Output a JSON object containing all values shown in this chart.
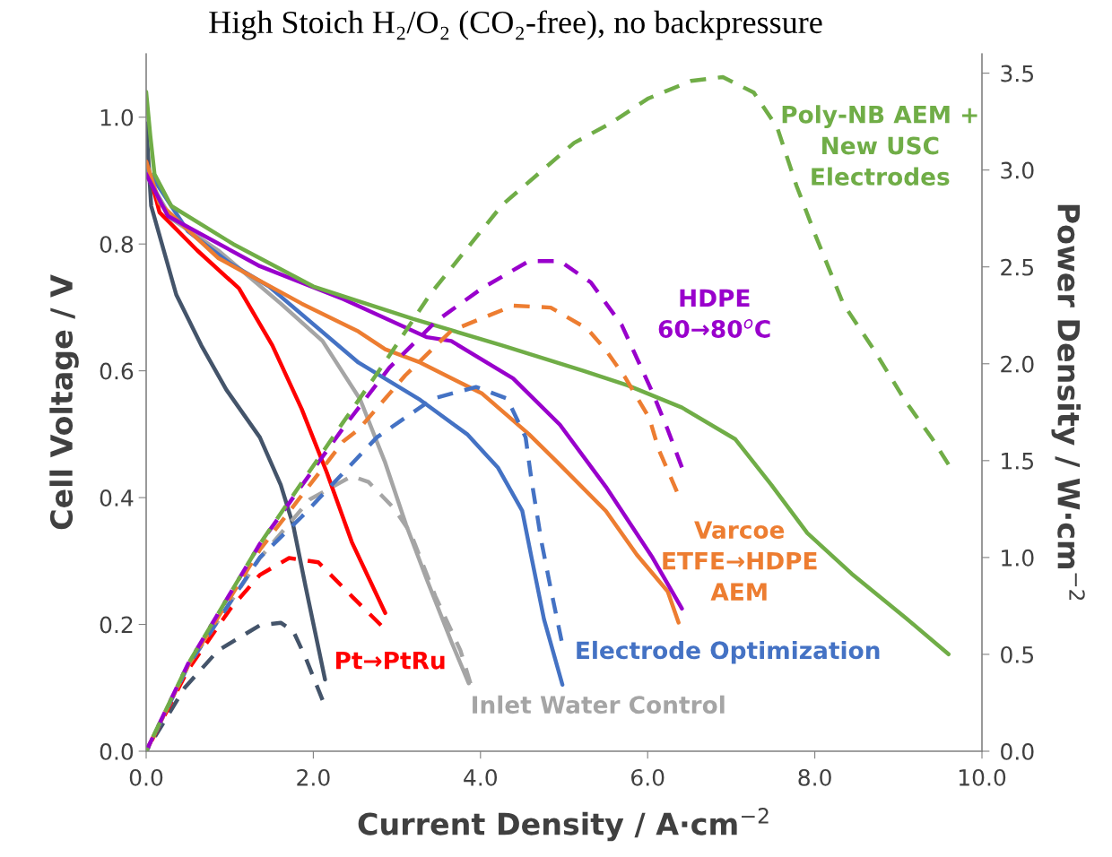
{
  "chart_data": {
    "type": "line",
    "title": "High Stoich H₂/O₂ (CO₂-free), no backpressure",
    "xlabel": "Current Density / A·cm$^{−2}$",
    "ylabel": "Cell Voltage / V",
    "y2label": "Power Density / W·cm$^{−2}$",
    "xlim": [
      0,
      10
    ],
    "xticks": [
      {
        "value": 0,
        "label": "0.0"
      },
      {
        "value": 2,
        "label": "2.0"
      },
      {
        "value": 4,
        "label": "4.0"
      },
      {
        "value": 6,
        "label": "6.0"
      },
      {
        "value": 8,
        "label": "8.0"
      },
      {
        "value": 10,
        "label": "10.0"
      }
    ],
    "ylim": [
      0,
      1.1
    ],
    "yticks": [
      {
        "value": 0,
        "label": "0.0"
      },
      0.2,
      0.4,
      0.6,
      0.8,
      {
        "value": 1,
        "label": "1.0"
      }
    ],
    "y2lim": [
      0,
      3.6
    ],
    "y2ticks": [
      {
        "value": 0,
        "label": "0.0"
      },
      0.5,
      {
        "value": 1,
        "label": "1.0"
      },
      1.5,
      {
        "value": 2,
        "label": "2.0"
      },
      2.5,
      {
        "value": 3,
        "label": "3.0"
      },
      3.5
    ],
    "series": [
      {
        "color": "#44546a",
        "line_style": "solid",
        "x": [
          0,
          0.06,
          0.36,
          0.66,
          0.96,
          1.36,
          1.61,
          1.76,
          1.91,
          2.14
        ],
        "values": [
          0.99,
          0.86,
          0.72,
          0.64,
          0.57,
          0.495,
          0.42,
          0.356,
          0.258,
          0.113
        ]
      },
      {
        "name": "Pt→PtRu",
        "color": "#ff0000",
        "line_style": "solid",
        "x": [
          0,
          0.16,
          0.61,
          1.11,
          1.51,
          1.86,
          2.16,
          2.46,
          2.86
        ],
        "values": [
          0.93,
          0.85,
          0.79,
          0.73,
          0.64,
          0.54,
          0.44,
          0.33,
          0.218
        ]
      },
      {
        "name": "Inlet Water Control",
        "color": "#a5a5a5",
        "line_style": "solid",
        "x": [
          0,
          0.3,
          0.86,
          1.61,
          2.11,
          2.56,
          2.86,
          3.11,
          3.36,
          3.66,
          3.86
        ],
        "values": [
          0.91,
          0.84,
          0.79,
          0.706,
          0.647,
          0.555,
          0.455,
          0.357,
          0.27,
          0.17,
          0.107
        ]
      },
      {
        "name": "Electrode Optimization",
        "color": "#4472c4",
        "line_style": "solid",
        "x": [
          0,
          0.5,
          1.0,
          1.47,
          2.54,
          3.28,
          3.84,
          4.21,
          4.5,
          4.61,
          4.76,
          4.98
        ],
        "values": [
          0.92,
          0.82,
          0.77,
          0.733,
          0.613,
          0.554,
          0.5,
          0.447,
          0.379,
          0.306,
          0.208,
          0.105
        ]
      },
      {
        "name": "Varcoe\nETFE→HDPE\nAEM",
        "color": "#ed7d31",
        "line_style": "solid",
        "x": [
          0,
          0.16,
          0.86,
          1.86,
          2.54,
          2.86,
          3.28,
          4.02,
          4.58,
          4.95,
          5.5,
          5.87,
          6.24,
          6.37
        ],
        "values": [
          0.93,
          0.864,
          0.778,
          0.706,
          0.662,
          0.634,
          0.613,
          0.564,
          0.5,
          0.452,
          0.379,
          0.31,
          0.252,
          0.203
        ]
      },
      {
        "name": "HDPE\n60→80$^{o}$C",
        "color": "#9900cc",
        "line_style": "solid",
        "x": [
          0,
          0.26,
          1.36,
          2.36,
          3.36,
          3.65,
          4.39,
          4.95,
          5.5,
          6.06,
          6.41
        ],
        "values": [
          0.91,
          0.844,
          0.765,
          0.713,
          0.653,
          0.647,
          0.588,
          0.515,
          0.417,
          0.305,
          0.225
        ]
      },
      {
        "name": "Poly-NB AEM +\nNew USC\nElectrodes",
        "color": "#70ad47",
        "line_style": "solid",
        "x": [
          0,
          0.05,
          0.1,
          0.3,
          1.04,
          2.0,
          3.19,
          4.26,
          5.23,
          5.76,
          6.41,
          7.05,
          7.48,
          7.91,
          8.44,
          9.09,
          9.6
        ],
        "values": [
          1.04,
          0.97,
          0.91,
          0.86,
          0.8,
          0.733,
          0.682,
          0.64,
          0.6,
          0.577,
          0.542,
          0.492,
          0.42,
          0.344,
          0.28,
          0.21,
          0.153
        ]
      },
      {
        "color": "#44546a",
        "line_style": "dashed",
        "axis": "y2",
        "x": [
          0,
          0.46,
          0.86,
          1.36,
          1.61,
          1.76,
          1.91,
          2.11
        ],
        "values": [
          0,
          0.327,
          0.52,
          0.65,
          0.663,
          0.62,
          0.48,
          0.264
        ]
      },
      {
        "color": "#ff0000",
        "line_style": "dashed",
        "axis": "y2",
        "x": [
          0,
          0.5,
          1.01,
          1.36,
          1.71,
          2.06,
          2.46,
          2.81
        ],
        "values": [
          0,
          0.42,
          0.737,
          0.91,
          0.997,
          0.975,
          0.8,
          0.65
        ]
      },
      {
        "color": "#a5a5a5",
        "line_style": "dashed",
        "axis": "y2",
        "x": [
          0,
          0.5,
          1.36,
          1.96,
          2.46,
          2.66,
          2.96,
          3.16,
          3.46,
          3.76,
          3.88
        ],
        "values": [
          0,
          0.44,
          0.997,
          1.3,
          1.42,
          1.39,
          1.256,
          1.13,
          0.8,
          0.52,
          0.35
        ]
      },
      {
        "color": "#4472c4",
        "line_style": "dashed",
        "axis": "y2",
        "x": [
          0,
          0.5,
          1.36,
          1.86,
          2.76,
          3.43,
          3.95,
          4.32,
          4.54,
          4.61,
          4.73,
          4.84,
          4.97
        ],
        "values": [
          0,
          0.44,
          1.0,
          1.21,
          1.62,
          1.82,
          1.88,
          1.82,
          1.62,
          1.4,
          1.08,
          0.84,
          0.57
        ]
      },
      {
        "color": "#ed7d31",
        "line_style": "dashed",
        "axis": "y2",
        "x": [
          0,
          0.5,
          1.36,
          2.36,
          2.54,
          3.1,
          3.65,
          4.39,
          4.84,
          5.28,
          5.5,
          5.73,
          6.02,
          6.13,
          6.35
        ],
        "values": [
          0,
          0.44,
          1.04,
          1.6,
          1.66,
          1.94,
          2.17,
          2.3,
          2.29,
          2.18,
          2.07,
          1.93,
          1.72,
          1.56,
          1.34
        ]
      },
      {
        "color": "#9900cc",
        "line_style": "dashed",
        "axis": "y2",
        "x": [
          0,
          0.5,
          1.36,
          2.36,
          2.91,
          3.47,
          4.02,
          4.58,
          4.95,
          5.32,
          5.69,
          6.06,
          6.24,
          6.41
        ],
        "values": [
          0,
          0.45,
          1.07,
          1.67,
          1.98,
          2.22,
          2.39,
          2.53,
          2.53,
          2.42,
          2.2,
          1.85,
          1.66,
          1.465
        ]
      },
      {
        "color": "#70ad47",
        "line_style": "dashed",
        "axis": "y2",
        "x": [
          0,
          0.5,
          1.36,
          2.36,
          2.86,
          3.4,
          4.26,
          5.12,
          5.55,
          6.01,
          6.52,
          6.9,
          7.27,
          7.55,
          7.78,
          8.01,
          8.34,
          8.71,
          9.08,
          9.41,
          9.6
        ],
        "values": [
          0,
          0.45,
          1.07,
          1.7,
          2.01,
          2.36,
          2.82,
          3.14,
          3.24,
          3.37,
          3.46,
          3.48,
          3.4,
          3.22,
          2.92,
          2.66,
          2.31,
          2.07,
          1.81,
          1.61,
          1.48
        ]
      }
    ]
  }
}
